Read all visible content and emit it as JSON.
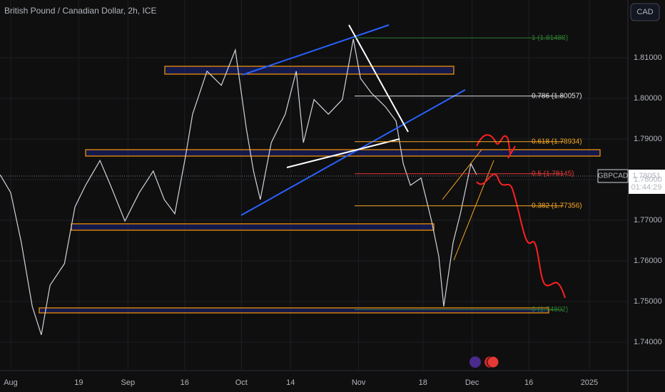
{
  "chart_data": {
    "type": "line",
    "title": "British Pound / Canadian Dollar, 2h, ICE",
    "currency": "CAD",
    "symbol": "GBPCAD",
    "last_price": "1.78051",
    "countdown": "01:44:29",
    "xlim": [
      -2.83,
      163.2
    ],
    "ylim": [
      1.733,
      1.8242
    ],
    "xticks": [
      {
        "value": 0,
        "label": "Aug"
      },
      {
        "value": 18,
        "label": "19"
      },
      {
        "value": 31,
        "label": "Sep"
      },
      {
        "value": 46,
        "label": "16"
      },
      {
        "value": 61,
        "label": "Oct"
      },
      {
        "value": 74,
        "label": "14"
      },
      {
        "value": 92,
        "label": "Nov"
      },
      {
        "value": 109,
        "label": "18"
      },
      {
        "value": 122,
        "label": "Dec"
      },
      {
        "value": 137,
        "label": "16"
      },
      {
        "value": 153,
        "label": "2025"
      }
    ],
    "yticks": [
      {
        "value": 1.81,
        "label": "1.81000"
      },
      {
        "value": 1.8,
        "label": "1.80000"
      },
      {
        "value": 1.79,
        "label": "1.79000"
      },
      {
        "value": 1.78,
        "label": "1.78000"
      },
      {
        "value": 1.77,
        "label": "1.77000"
      },
      {
        "value": 1.76,
        "label": "1.76000"
      },
      {
        "value": 1.75,
        "label": "1.75000"
      },
      {
        "value": 1.74,
        "label": "1.74000"
      }
    ],
    "x": [
      -2.8,
      0,
      2.8,
      5.7,
      8.1,
      10.4,
      14.2,
      17.0,
      19.8,
      23.6,
      26.4,
      30.2,
      34.0,
      37.7,
      40.6,
      43.4,
      46.2,
      48.1,
      51.9,
      55.7,
      59.4,
      62.3,
      64.2,
      66.0,
      68.9,
      72.6,
      75.5,
      77.4,
      80.2,
      84.0,
      87.7,
      90.6,
      92.5,
      95.3,
      99.1,
      101.9,
      103.8,
      105.7,
      108.5,
      111.3,
      113.2,
      114.5,
      117.0,
      118.9,
      121.7,
      123.2
    ],
    "series": [
      {
        "name": "GBPCAD",
        "color": "#d1d4dc",
        "values": [
          1.7812,
          1.7768,
          1.7646,
          1.7488,
          1.7418,
          1.754,
          1.7593,
          1.7733,
          1.7786,
          1.7847,
          1.7786,
          1.7698,
          1.7768,
          1.7821,
          1.7751,
          1.7716,
          1.7856,
          1.7961,
          1.8067,
          1.8032,
          1.8119,
          1.7926,
          1.7821,
          1.7751,
          1.7891,
          1.7961,
          1.8067,
          1.7891,
          1.7997,
          1.7961,
          1.7997,
          1.8146,
          1.8049,
          1.8014,
          1.7979,
          1.7944,
          1.7839,
          1.7786,
          1.7804,
          1.7698,
          1.7611,
          1.7488,
          1.7646,
          1.7716,
          1.7839,
          1.7812
        ]
      }
    ],
    "fib_levels": [
      {
        "label": "1 (1.81488)",
        "value": 1.81488,
        "color": "#2e7d32"
      },
      {
        "label": "0.786 (1.80057)",
        "value": 1.80057,
        "color": "#e0e0e0"
      },
      {
        "label": "0.618 (1.78934)",
        "value": 1.78934,
        "color": "#f9a825"
      },
      {
        "label": "0.5 (1.78145)",
        "value": 1.78145,
        "color": "#e53935"
      },
      {
        "label": "0.382 (1.77356)",
        "value": 1.77356,
        "color": "#f9a825"
      },
      {
        "label": "0 (1.74802)",
        "value": 1.74802,
        "color": "#2e7d32"
      }
    ]
  }
}
